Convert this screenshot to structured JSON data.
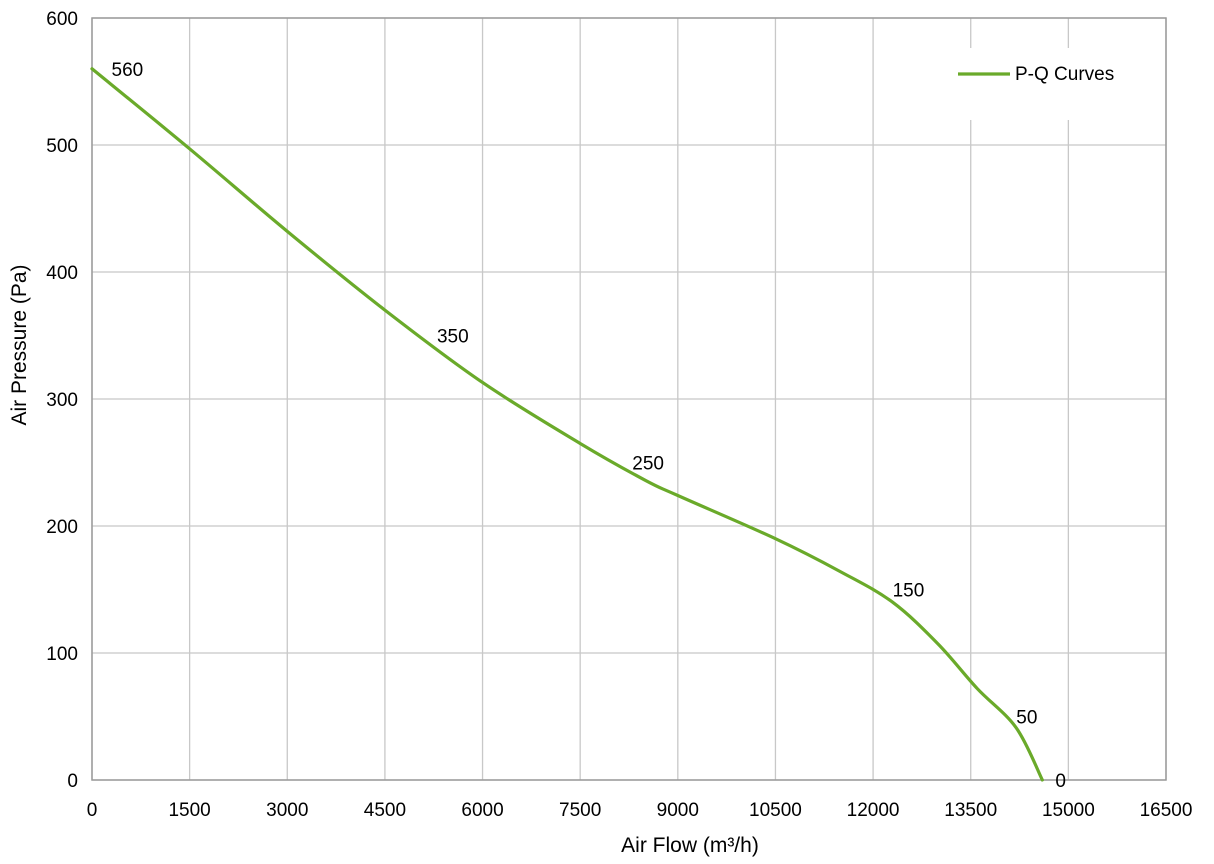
{
  "chart_data": {
    "type": "line",
    "title": "",
    "xlabel": "Air Flow  (m³/h)",
    "ylabel": "Air Pressure  (Pa)",
    "xlim": [
      0,
      16500
    ],
    "ylim": [
      0,
      600
    ],
    "x_ticks": [
      "0",
      "1500",
      "3000",
      "4500",
      "6000",
      "7500",
      "9000",
      "10500",
      "12000",
      "13500",
      "15000",
      "16500"
    ],
    "y_ticks": [
      "0",
      "100",
      "200",
      "300",
      "400",
      "500",
      "600"
    ],
    "grid": true,
    "legend_position": "top-right",
    "series": [
      {
        "name": "P-Q Curves",
        "color": "#6aaa2a",
        "x": [
          0,
          1500,
          3000,
          4500,
          6000,
          7500,
          8500,
          9000,
          10500,
          11500,
          12300,
          13000,
          13600,
          14200,
          14600
        ],
        "y": [
          560,
          497,
          432,
          370,
          313,
          265,
          236,
          224,
          190,
          164,
          140,
          107,
          72,
          41,
          0
        ]
      }
    ],
    "data_labels": [
      {
        "text": "560",
        "x": 300,
        "y": 560
      },
      {
        "text": "350",
        "x": 5300,
        "y": 350
      },
      {
        "text": "250",
        "x": 8300,
        "y": 250
      },
      {
        "text": "150",
        "x": 12300,
        "y": 150
      },
      {
        "text": "50",
        "x": 14200,
        "y": 50
      },
      {
        "text": "0",
        "x": 14800,
        "y": 0
      }
    ]
  }
}
